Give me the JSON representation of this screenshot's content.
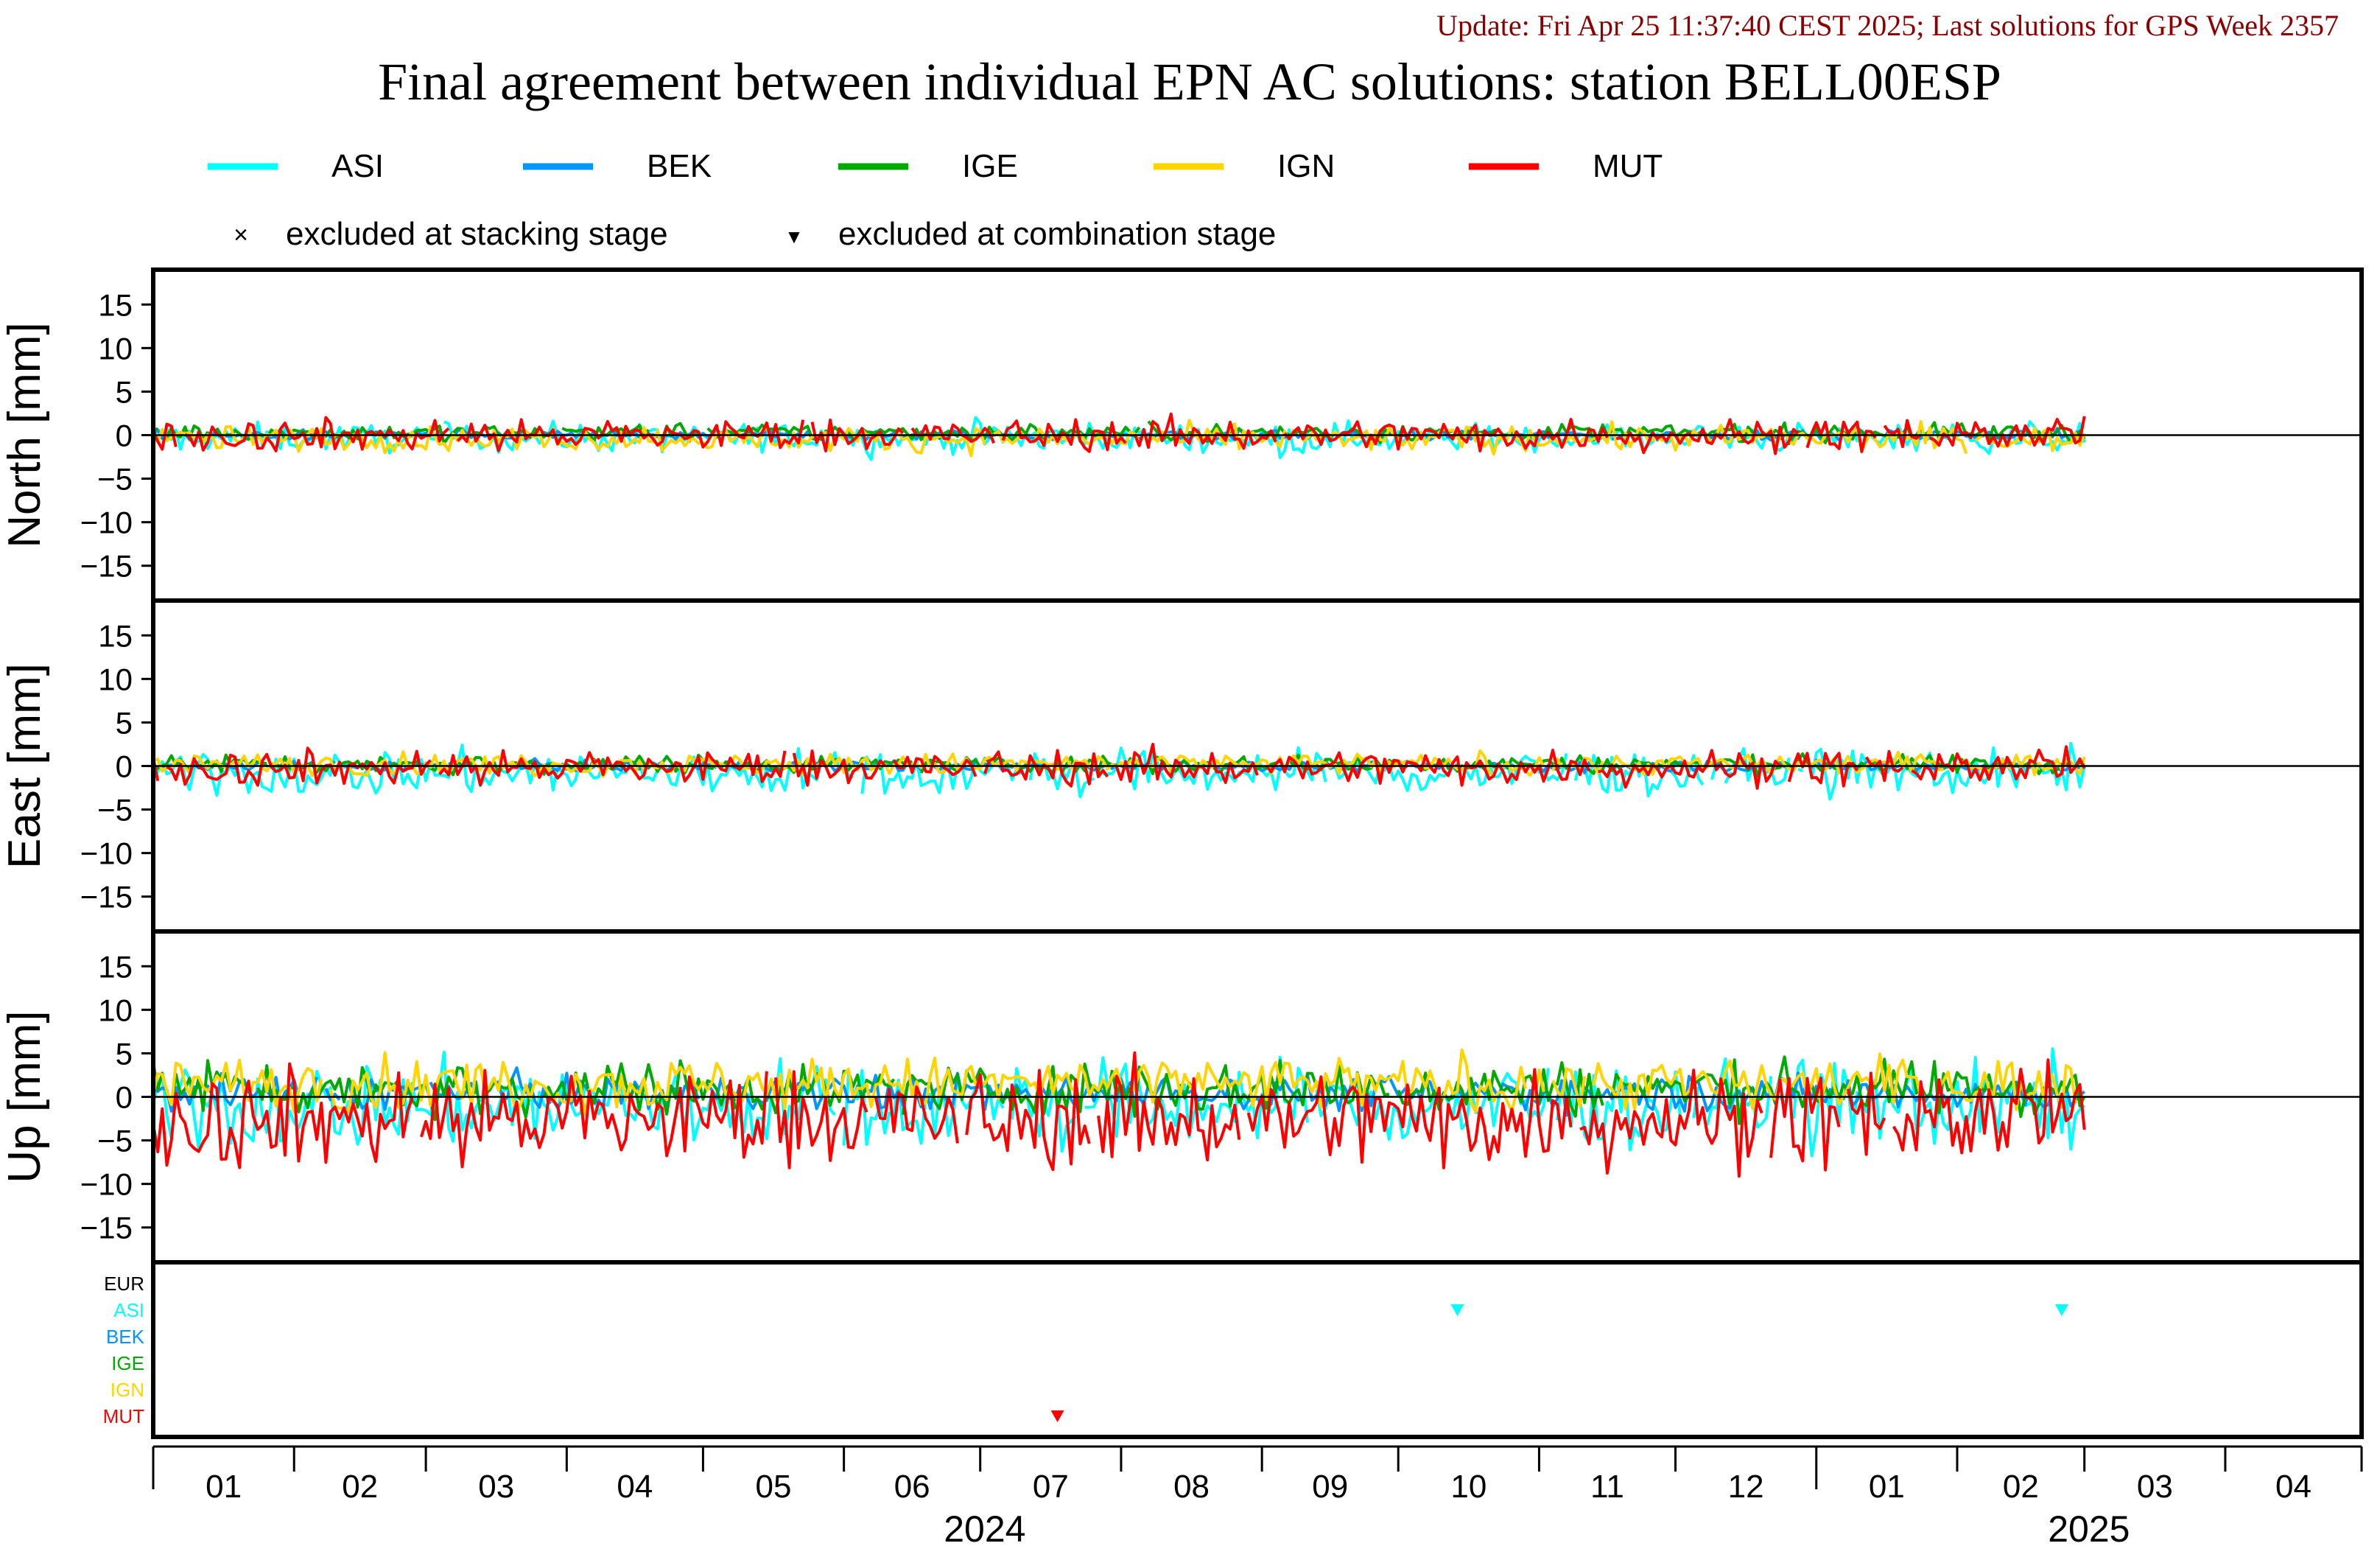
{
  "update_text": "Update: Fri Apr 25 11:37:40 CEST 2025; Last solutions for GPS Week 2357",
  "title": "Final agreement between individual EPN AC solutions: station BELL00ESP",
  "colors": {
    "ASI": "#00ffff",
    "BEK": "#0096ff",
    "IGE": "#00aa00",
    "IGN": "#ffd400",
    "MUT": "#ff0000",
    "EUR": "#000000",
    "update_text": "#8b0000"
  },
  "legend": {
    "series": [
      "ASI",
      "BEK",
      "IGE",
      "IGN",
      "MUT"
    ],
    "markers": [
      {
        "symbol": "×",
        "label": "excluded at stacking stage"
      },
      {
        "symbol": "▼",
        "label": "excluded at combination stage"
      }
    ]
  },
  "chart_data": {
    "type": "line",
    "grid": false,
    "x_range": [
      "2024-01-01",
      "2025-04-30"
    ],
    "x_month_labels": [
      "01",
      "02",
      "03",
      "04",
      "05",
      "06",
      "07",
      "08",
      "09",
      "10",
      "11",
      "12",
      "01",
      "02",
      "03",
      "04"
    ],
    "x_year_labels": [
      "2024",
      "2025"
    ],
    "panels": [
      {
        "name": "north",
        "ylabel": "North [mm]",
        "ylim": [
          -19,
          19
        ],
        "yticks": [
          15,
          10,
          5,
          0,
          -5,
          -10,
          -15
        ],
        "ytick_labels": [
          "15",
          "10",
          "5",
          "0",
          "−5",
          "−10",
          "−15"
        ],
        "series": [
          {
            "name": "ASI",
            "approx_mean_mm": -0.3,
            "approx_spread_mm": 0.8
          },
          {
            "name": "BEK",
            "approx_mean_mm": 0.0,
            "approx_spread_mm": 0.3
          },
          {
            "name": "IGE",
            "approx_mean_mm": 0.3,
            "approx_spread_mm": 0.5
          },
          {
            "name": "IGN",
            "approx_mean_mm": -0.4,
            "approx_spread_mm": 0.7
          },
          {
            "name": "MUT",
            "approx_mean_mm": 0.0,
            "approx_spread_mm": 0.9
          }
        ]
      },
      {
        "name": "east",
        "ylabel": "East [mm]",
        "ylim": [
          -19,
          19
        ],
        "yticks": [
          15,
          10,
          5,
          0,
          -5,
          -10,
          -15
        ],
        "ytick_labels": [
          "15",
          "10",
          "5",
          "0",
          "−5",
          "−10",
          "−15"
        ],
        "series": [
          {
            "name": "ASI",
            "approx_mean_mm": -0.8,
            "approx_spread_mm": 1.3
          },
          {
            "name": "BEK",
            "approx_mean_mm": 0.0,
            "approx_spread_mm": 0.3
          },
          {
            "name": "IGE",
            "approx_mean_mm": 0.2,
            "approx_spread_mm": 0.5
          },
          {
            "name": "IGN",
            "approx_mean_mm": 0.2,
            "approx_spread_mm": 0.6
          },
          {
            "name": "MUT",
            "approx_mean_mm": -0.2,
            "approx_spread_mm": 1.0
          }
        ]
      },
      {
        "name": "up",
        "ylabel": "Up [mm]",
        "ylim": [
          -19,
          19
        ],
        "yticks": [
          15,
          10,
          5,
          0,
          -5,
          -10,
          -15
        ],
        "ytick_labels": [
          "15",
          "10",
          "5",
          "0",
          "−5",
          "−10",
          "−15"
        ],
        "series": [
          {
            "name": "ASI",
            "approx_mean_mm": -1.0,
            "approx_spread_mm": 2.5
          },
          {
            "name": "BEK",
            "approx_mean_mm": 0.5,
            "approx_spread_mm": 1.0
          },
          {
            "name": "IGE",
            "approx_mean_mm": 1.0,
            "approx_spread_mm": 1.5
          },
          {
            "name": "IGN",
            "approx_mean_mm": 1.5,
            "approx_spread_mm": 1.5
          },
          {
            "name": "MUT",
            "approx_mean_mm": -2.5,
            "approx_spread_mm": 2.8
          }
        ]
      }
    ],
    "exclusion_panel": {
      "row_labels": [
        "EUR",
        "ASI",
        "BEK",
        "IGE",
        "IGN",
        "MUT"
      ],
      "combination_exclusions": [
        {
          "ac": "ASI",
          "date": "2024-10-14"
        },
        {
          "ac": "ASI",
          "date": "2025-02-24"
        },
        {
          "ac": "MUT",
          "date": "2024-07-18"
        }
      ],
      "stacking_exclusions": []
    }
  }
}
